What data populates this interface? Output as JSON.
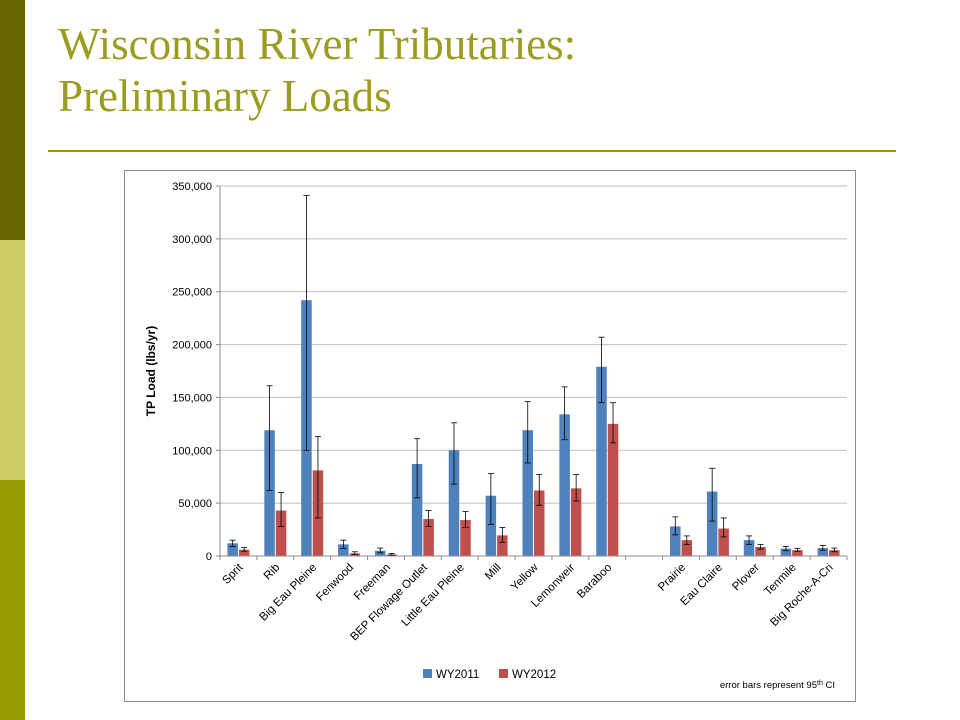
{
  "theme": {
    "dark": "#666600",
    "light": "#cccc66",
    "mid": "#999900",
    "title": "#9c9c1f"
  },
  "slide": {
    "title_line1": "Wisconsin River Tributaries:",
    "title_line2": "Preliminary Loads"
  },
  "chart_data": {
    "type": "bar",
    "ylabel": "TP Load (lbs/yr)",
    "ylim": [
      0,
      350000
    ],
    "yticks": [
      0,
      50000,
      100000,
      150000,
      200000,
      250000,
      300000,
      350000
    ],
    "ytick_labels": [
      "0",
      "50,000",
      "100,000",
      "150,000",
      "200,000",
      "250,000",
      "300,000",
      "350,000"
    ],
    "grid": true,
    "legend_position": "bottom-center",
    "categories": [
      "Sprit",
      "Rib",
      "Big Eau Pleine",
      "Fenwood",
      "Freeman",
      "BEP Flowage Outlet",
      "Little Eau Pleine",
      "Mill",
      "Yellow",
      "Lemonweir",
      "Baraboo",
      "",
      "Prairie",
      "Eau Claire",
      "Plover",
      "Tenmile",
      "Big Roche-A-Cri"
    ],
    "series": [
      {
        "name": "WY2011",
        "color": "#4f81bd",
        "values": [
          12000,
          119000,
          242000,
          11000,
          5000,
          87000,
          100000,
          57000,
          119000,
          134000,
          179000,
          null,
          28000,
          61000,
          15000,
          7000,
          7500
        ],
        "err_low": [
          9000,
          62000,
          100000,
          7000,
          3000,
          55000,
          68000,
          30000,
          88000,
          110000,
          145000,
          null,
          20000,
          33000,
          11000,
          5000,
          5500
        ],
        "err_high": [
          15000,
          161000,
          341000,
          15000,
          7500,
          111000,
          126000,
          78000,
          146000,
          160000,
          207000,
          null,
          37000,
          83000,
          19000,
          9000,
          10000
        ]
      },
      {
        "name": "WY2012",
        "color": "#c0504d",
        "values": [
          6000,
          43000,
          81000,
          2500,
          1500,
          35000,
          34000,
          19500,
          62000,
          64000,
          125000,
          null,
          15000,
          26000,
          8500,
          5500,
          5500
        ],
        "err_low": [
          4500,
          28000,
          36000,
          1500,
          800,
          28000,
          27000,
          13000,
          48000,
          52000,
          107000,
          null,
          11000,
          18000,
          6500,
          4500,
          4000
        ],
        "err_high": [
          8000,
          60000,
          113000,
          4000,
          2300,
          43000,
          42000,
          27000,
          77000,
          77000,
          145000,
          null,
          19000,
          36000,
          11000,
          7000,
          7500
        ]
      }
    ],
    "note": {
      "prefix": "error bars represent 95",
      "sup": "th",
      "suffix": " CI"
    }
  }
}
